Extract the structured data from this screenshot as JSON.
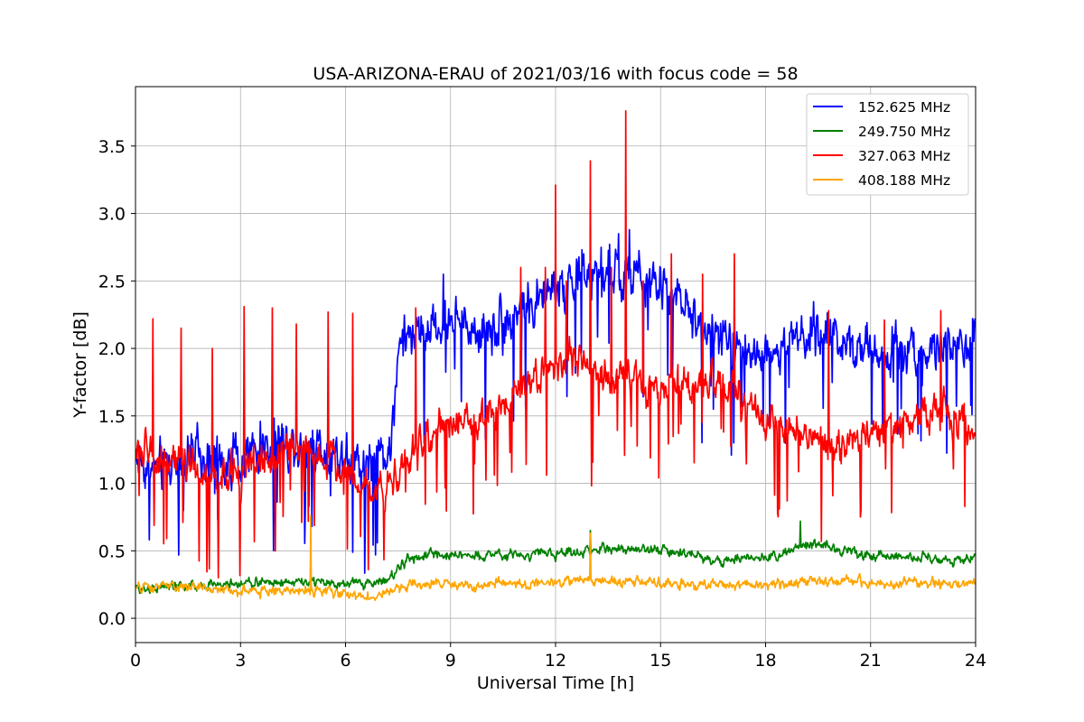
{
  "chart_data": {
    "type": "line",
    "title": "USA-ARIZONA-ERAU of 2021/03/16 with focus code = 58",
    "xlabel": "Universal Time [h]",
    "ylabel": "Y-factor [dB]",
    "xlim": [
      0,
      24
    ],
    "ylim": [
      -0.18,
      3.94
    ],
    "xticks": [
      0,
      3,
      6,
      9,
      12,
      15,
      18,
      21,
      24
    ],
    "xtick_labels": [
      "0",
      "3",
      "6",
      "9",
      "12",
      "15",
      "18",
      "21",
      "24"
    ],
    "yticks": [
      0.0,
      0.5,
      1.0,
      1.5,
      2.0,
      2.5,
      3.0,
      3.5
    ],
    "ytick_labels": [
      "0.0",
      "0.5",
      "1.0",
      "1.5",
      "2.0",
      "2.5",
      "3.0",
      "3.5"
    ],
    "grid": true,
    "legend_position": "top-right",
    "series": [
      {
        "name": "152.625 MHz",
        "color": "#0000ff",
        "x": [
          0,
          0.5,
          1,
          1.5,
          2,
          2.5,
          3,
          3.5,
          4,
          4.5,
          5,
          5.5,
          6,
          6.5,
          7,
          7.3,
          7.5,
          8,
          8.5,
          9,
          9.5,
          10,
          10.5,
          11,
          11.5,
          12,
          12.5,
          13,
          13.5,
          14,
          14.5,
          15,
          15.5,
          16,
          16.5,
          17,
          17.5,
          18,
          18.5,
          19,
          19.5,
          20,
          20.5,
          21,
          21.5,
          22,
          22.5,
          23,
          23.5,
          24
        ],
        "y": [
          1.2,
          1.1,
          1.15,
          1.2,
          1.15,
          1.15,
          1.2,
          1.25,
          1.3,
          1.3,
          1.3,
          1.25,
          1.2,
          1.15,
          1.2,
          1.3,
          2.0,
          2.1,
          2.15,
          2.2,
          2.15,
          2.15,
          2.2,
          2.3,
          2.35,
          2.45,
          2.5,
          2.55,
          2.55,
          2.55,
          2.5,
          2.45,
          2.35,
          2.2,
          2.1,
          2.05,
          2.0,
          1.95,
          2.0,
          2.1,
          2.1,
          2.1,
          2.05,
          2.0,
          2.0,
          2.0,
          2.0,
          2.0,
          2.0,
          2.0
        ],
        "noise": 0.17,
        "dips": 0.55,
        "dip_min": 0.0,
        "spike_times": [
          8.8,
          12.8,
          13.3,
          13.8,
          14.1
        ],
        "spike_values": [
          2.55,
          2.7,
          2.75,
          2.85,
          2.88
        ]
      },
      {
        "name": "249.750 MHz",
        "color": "#008000",
        "x": [
          0,
          1,
          2,
          3,
          4,
          5,
          6,
          6.5,
          7,
          7.4,
          7.8,
          8.5,
          9,
          10,
          11,
          12,
          13,
          13.5,
          14,
          15,
          16,
          16.5,
          17,
          18,
          19,
          19.5,
          20,
          21,
          22,
          23,
          24
        ],
        "y": [
          0.22,
          0.24,
          0.24,
          0.26,
          0.27,
          0.27,
          0.25,
          0.26,
          0.27,
          0.32,
          0.44,
          0.47,
          0.47,
          0.47,
          0.47,
          0.48,
          0.5,
          0.52,
          0.52,
          0.5,
          0.47,
          0.43,
          0.43,
          0.45,
          0.52,
          0.55,
          0.52,
          0.47,
          0.45,
          0.44,
          0.44
        ],
        "noise": 0.035,
        "dips": 0.04,
        "dip_min": 0.02,
        "spike_times": [
          13.0,
          19.0
        ],
        "spike_values": [
          0.65,
          0.72
        ]
      },
      {
        "name": "327.063 MHz",
        "color": "#ff0000",
        "x": [
          0,
          0.5,
          1,
          1.5,
          2,
          2.5,
          3,
          3.5,
          4,
          4.5,
          5,
          5.5,
          6,
          6.5,
          7,
          7.5,
          8,
          8.5,
          9,
          9.5,
          10,
          10.5,
          11,
          11.5,
          12,
          12.5,
          13,
          13.5,
          14,
          14.5,
          15,
          15.5,
          16,
          16.5,
          17,
          17.5,
          18,
          18.5,
          19,
          19.5,
          20,
          20.5,
          21,
          21.5,
          22,
          22.5,
          23,
          23.5,
          24
        ],
        "y": [
          1.25,
          1.2,
          1.15,
          1.1,
          1.05,
          1.05,
          1.1,
          1.15,
          1.2,
          1.25,
          1.25,
          1.2,
          1.1,
          1.0,
          0.95,
          1.1,
          1.25,
          1.35,
          1.4,
          1.45,
          1.5,
          1.6,
          1.7,
          1.8,
          1.9,
          1.95,
          1.85,
          1.75,
          1.75,
          1.7,
          1.7,
          1.7,
          1.7,
          1.75,
          1.7,
          1.6,
          1.5,
          1.4,
          1.35,
          1.3,
          1.3,
          1.3,
          1.35,
          1.4,
          1.45,
          1.55,
          1.55,
          1.45,
          1.35
        ],
        "noise": 0.13,
        "dips": 0.5,
        "dip_min": 0.3,
        "spike_times": [
          0.5,
          1.3,
          2.2,
          3.1,
          3.9,
          4.6,
          5.5,
          6.2,
          8.0,
          11.0,
          11.7,
          12.0,
          12.3,
          13.0,
          13.6,
          14.0,
          14.5,
          15.3,
          16.2,
          17.1,
          19.8,
          21.4,
          23.0
        ],
        "spike_values": [
          2.22,
          2.15,
          2.0,
          2.31,
          2.3,
          2.18,
          2.27,
          2.26,
          2.3,
          2.6,
          2.6,
          3.21,
          2.5,
          3.39,
          2.6,
          3.76,
          2.5,
          2.7,
          2.55,
          2.7,
          2.28,
          2.21,
          2.28
        ]
      },
      {
        "name": "408.188 MHz",
        "color": "#ffa500",
        "x": [
          0,
          1,
          2,
          3,
          4,
          5,
          6,
          6.5,
          7,
          7.5,
          8,
          9,
          10,
          11,
          12,
          13,
          14,
          15,
          16,
          17,
          18,
          19,
          20,
          21,
          22,
          23,
          24
        ],
        "y": [
          0.22,
          0.24,
          0.22,
          0.21,
          0.2,
          0.21,
          0.18,
          0.16,
          0.17,
          0.22,
          0.25,
          0.25,
          0.25,
          0.25,
          0.27,
          0.28,
          0.27,
          0.26,
          0.25,
          0.25,
          0.25,
          0.27,
          0.27,
          0.26,
          0.26,
          0.25,
          0.26
        ],
        "noise": 0.035,
        "dips": 0.03,
        "dip_min": 0.05,
        "spike_times": [
          5.0,
          13.0
        ],
        "spike_values": [
          0.76,
          0.63
        ]
      }
    ]
  }
}
